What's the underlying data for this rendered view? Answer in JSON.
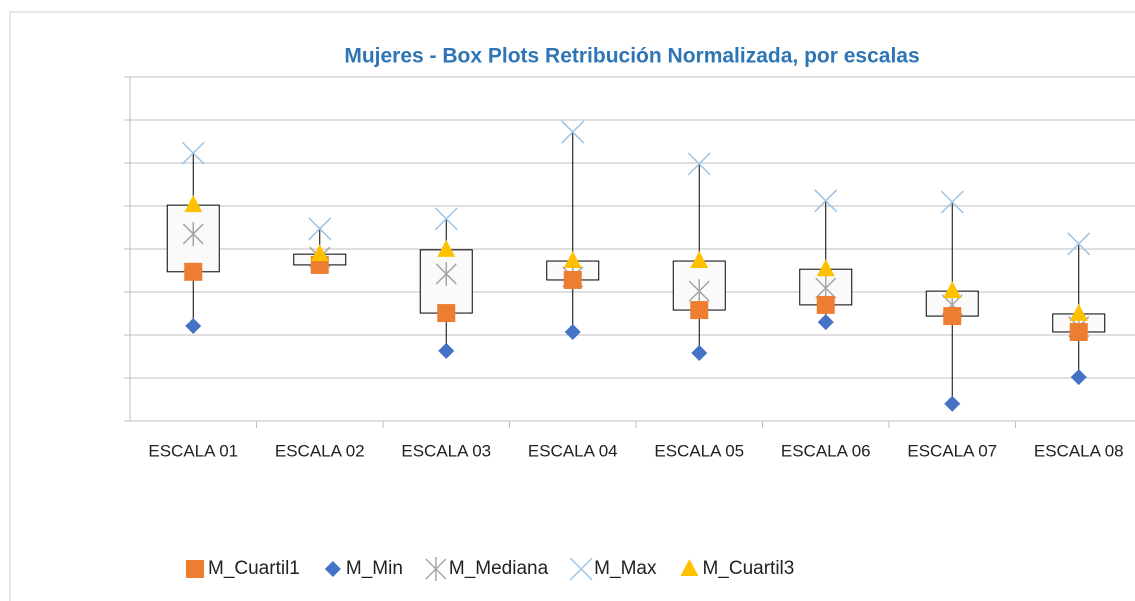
{
  "chart_data": {
    "type": "box",
    "title": "Mujeres - Box Plots Retribución Normalizada, por escalas",
    "categories": [
      "ESCALA 01",
      "ESCALA 02",
      "ESCALA 03",
      "ESCALA 04",
      "ESCALA 05",
      "ESCALA 06",
      "ESCALA 07",
      "ESCALA 08"
    ],
    "series": [
      {
        "name": "M_Cuartil1",
        "color": "#ed7d31",
        "marker": "square",
        "values": [
          3.47,
          3.63,
          2.51,
          3.28,
          2.58,
          2.7,
          2.44,
          2.07
        ]
      },
      {
        "name": "M_Min",
        "color": "#4472c4",
        "marker": "diamond",
        "values": [
          2.21,
          3.67,
          1.63,
          2.07,
          1.58,
          2.3,
          0.4,
          1.02
        ]
      },
      {
        "name": "M_Mediana",
        "color": "#a5a5a5",
        "marker": "star",
        "values": [
          4.35,
          3.81,
          3.42,
          3.35,
          3.02,
          3.09,
          2.7,
          2.19
        ]
      },
      {
        "name": "M_Max",
        "color": "#9dc3e6",
        "marker": "x",
        "values": [
          6.23,
          4.47,
          4.7,
          6.72,
          5.98,
          5.12,
          5.09,
          4.12
        ]
      },
      {
        "name": "M_Cuartil3",
        "color": "#ffc000",
        "marker": "triangle",
        "values": [
          5.02,
          3.88,
          3.98,
          3.72,
          3.72,
          3.53,
          3.02,
          2.49
        ]
      }
    ],
    "ylim": [
      0,
      8
    ],
    "yticks": [
      0,
      1,
      2,
      3,
      4,
      5,
      6,
      7,
      8
    ],
    "grid": true
  }
}
